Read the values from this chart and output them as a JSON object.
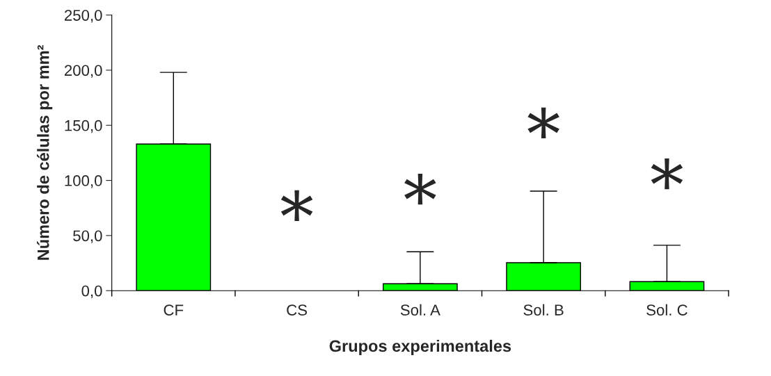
{
  "chart_data": {
    "type": "bar",
    "xlabel": "Grupos experimentales",
    "ylabel": "Número de células por mm²",
    "categories": [
      "CF",
      "CS",
      "Sol. A",
      "Sol. B",
      "Sol. C"
    ],
    "values": [
      133,
      0,
      6.3,
      25.3,
      8.2
    ],
    "errors": [
      [
        133,
        198
      ],
      null,
      [
        6.3,
        35.3
      ],
      [
        25.3,
        90.3
      ],
      [
        8.2,
        41.2
      ]
    ],
    "color": "#00ff00",
    "ylim": [
      0,
      250
    ],
    "yticks": [
      {
        "value": 0,
        "label": "0,0"
      },
      {
        "value": 50,
        "label": "50,0"
      },
      {
        "value": 100,
        "label": "100,0"
      },
      {
        "value": 150,
        "label": "150,0"
      },
      {
        "value": 200,
        "label": "200,0"
      },
      {
        "value": 250,
        "label": "250,0"
      }
    ],
    "annotations": [
      "*",
      "*",
      "*",
      "*"
    ],
    "grid": false,
    "legend": false
  }
}
